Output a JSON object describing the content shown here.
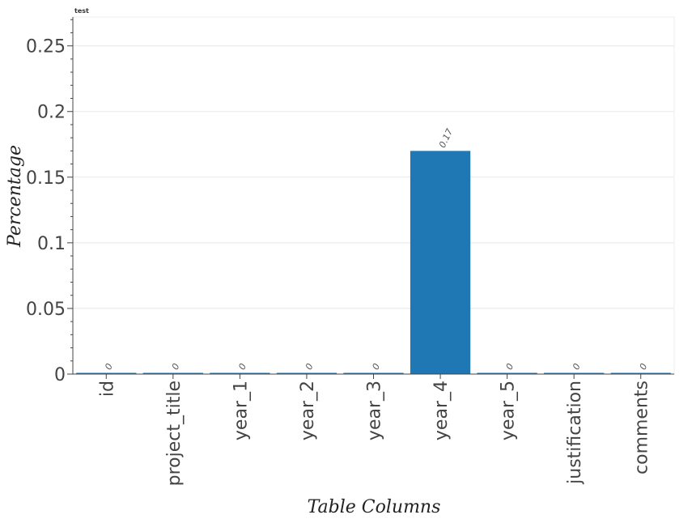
{
  "chart_data": {
    "type": "bar",
    "title": "test",
    "xlabel": "Table Columns",
    "ylabel": "Percentage",
    "categories": [
      "id",
      "project_title",
      "year_1",
      "year_2",
      "year_3",
      "year_4",
      "year_5",
      "justification",
      "comments"
    ],
    "values": [
      0,
      0,
      0,
      0,
      0,
      0.17,
      0,
      0,
      0
    ],
    "data_labels": [
      "0",
      "0",
      "0",
      "0",
      "0",
      "0.17",
      "0",
      "0",
      "0"
    ],
    "ylim": [
      0,
      0.272
    ],
    "yticks": [
      0,
      0.05,
      0.1,
      0.15,
      0.2,
      0.25
    ],
    "ytick_labels": [
      "0",
      "0.05",
      "0.1",
      "0.15",
      "0.2",
      "0.25"
    ],
    "grid": true,
    "legend": "none",
    "bar_color": "#1f77b4"
  }
}
